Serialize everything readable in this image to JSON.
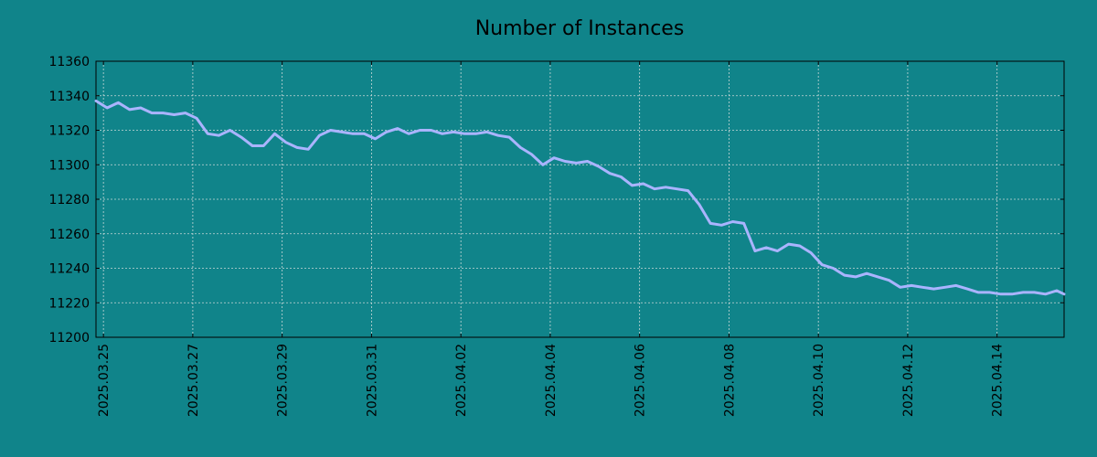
{
  "chart_data": {
    "type": "line",
    "title": "Number of Instances",
    "xlabel": "",
    "ylabel": "",
    "ylim": [
      11200,
      11360
    ],
    "xlim": [
      "2025-03-24T20:00",
      "2025-04-15T12:00"
    ],
    "grid": true,
    "y_ticks": [
      "11200",
      "11220",
      "11240",
      "11260",
      "11280",
      "11300",
      "11320",
      "11340",
      "11360"
    ],
    "x_ticks": [
      "2025.03.25",
      "2025.03.27",
      "2025.03.29",
      "2025.03.31",
      "2025.04.02",
      "2025.04.04",
      "2025.04.06",
      "2025.04.08",
      "2025.04.10",
      "2025.04.12",
      "2025.04.14"
    ],
    "colors": {
      "background": "#10848a",
      "line": "#aab4ff"
    },
    "series": [
      {
        "x": [
          "2025-03-24T20:00",
          "2025-03-25T02:00",
          "2025-03-25T08:00",
          "2025-03-25T14:00",
          "2025-03-25T20:00",
          "2025-03-26T02:00",
          "2025-03-26T08:00",
          "2025-03-26T14:00",
          "2025-03-26T20:00",
          "2025-03-27T02:00",
          "2025-03-27T08:00",
          "2025-03-27T14:00",
          "2025-03-27T20:00",
          "2025-03-28T02:00",
          "2025-03-28T08:00",
          "2025-03-28T14:00",
          "2025-03-28T20:00",
          "2025-03-29T02:00",
          "2025-03-29T08:00",
          "2025-03-29T14:00",
          "2025-03-29T20:00",
          "2025-03-30T02:00",
          "2025-03-30T08:00",
          "2025-03-30T14:00",
          "2025-03-30T20:00",
          "2025-03-31T02:00",
          "2025-03-31T08:00",
          "2025-03-31T14:00",
          "2025-03-31T20:00",
          "2025-04-01T02:00",
          "2025-04-01T08:00",
          "2025-04-01T14:00",
          "2025-04-01T20:00",
          "2025-04-02T02:00",
          "2025-04-02T08:00",
          "2025-04-02T14:00",
          "2025-04-02T20:00",
          "2025-04-03T02:00",
          "2025-04-03T08:00",
          "2025-04-03T14:00",
          "2025-04-03T20:00",
          "2025-04-04T02:00",
          "2025-04-04T08:00",
          "2025-04-04T14:00",
          "2025-04-04T20:00",
          "2025-04-05T02:00",
          "2025-04-05T08:00",
          "2025-04-05T14:00",
          "2025-04-05T20:00",
          "2025-04-06T02:00",
          "2025-04-06T08:00",
          "2025-04-06T14:00",
          "2025-04-06T20:00",
          "2025-04-07T02:00",
          "2025-04-07T08:00",
          "2025-04-07T14:00",
          "2025-04-07T20:00",
          "2025-04-08T02:00",
          "2025-04-08T08:00",
          "2025-04-08T14:00",
          "2025-04-08T20:00",
          "2025-04-09T02:00",
          "2025-04-09T08:00",
          "2025-04-09T14:00",
          "2025-04-09T20:00",
          "2025-04-10T02:00",
          "2025-04-10T08:00",
          "2025-04-10T14:00",
          "2025-04-10T20:00",
          "2025-04-11T02:00",
          "2025-04-11T08:00",
          "2025-04-11T14:00",
          "2025-04-11T20:00",
          "2025-04-12T02:00",
          "2025-04-12T08:00",
          "2025-04-12T14:00",
          "2025-04-12T20:00",
          "2025-04-13T02:00",
          "2025-04-13T08:00",
          "2025-04-13T14:00",
          "2025-04-13T20:00",
          "2025-04-14T02:00",
          "2025-04-14T08:00",
          "2025-04-14T14:00",
          "2025-04-14T20:00",
          "2025-04-15T02:00",
          "2025-04-15T08:00",
          "2025-04-15T12:00"
        ],
        "y": [
          11337,
          11333,
          11336,
          11332,
          11333,
          11330,
          11330,
          11329,
          11330,
          11327,
          11318,
          11317,
          11320,
          11316,
          11311,
          11311,
          11318,
          11313,
          11310,
          11309,
          11317,
          11320,
          11319,
          11318,
          11318,
          11315,
          11319,
          11321,
          11318,
          11320,
          11320,
          11318,
          11319,
          11318,
          11318,
          11319,
          11317,
          11316,
          11310,
          11306,
          11300,
          11304,
          11302,
          11301,
          11302,
          11299,
          11295,
          11293,
          11288,
          11289,
          11286,
          11287,
          11286,
          11285,
          11277,
          11266,
          11265,
          11267,
          11266,
          11250,
          11252,
          11250,
          11254,
          11253,
          11249,
          11242,
          11240,
          11236,
          11235,
          11237,
          11235,
          11233,
          11229,
          11230,
          11229,
          11228,
          11229,
          11230,
          11228,
          11226,
          11226,
          11225,
          11225,
          11226,
          11226,
          11225,
          11227,
          11225
        ]
      }
    ]
  }
}
